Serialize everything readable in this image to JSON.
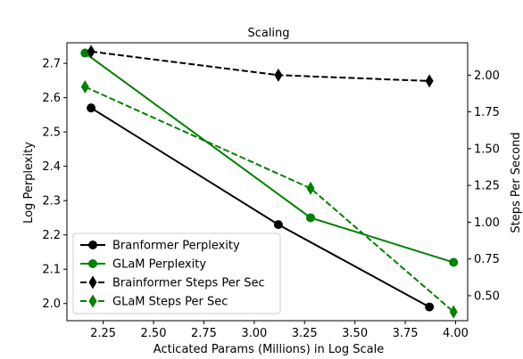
{
  "chart_data": {
    "type": "line",
    "title": "Scaling",
    "xlabel": "Acticated Params (Millions) in Log Scale",
    "ylabel_left": "Log Perplexity",
    "ylabel_right": "Steps Per Second",
    "xlim": [
      2.07,
      4.06
    ],
    "ylim_left": [
      1.95,
      2.76
    ],
    "ylim_right": [
      0.33,
      2.22
    ],
    "x_ticks": [
      2.25,
      2.5,
      2.75,
      3.0,
      3.25,
      3.5,
      3.75,
      4.0
    ],
    "x_tick_labels": [
      "2.25",
      "2.50",
      "2.75",
      "3.00",
      "3.25",
      "3.50",
      "3.75",
      "4.00"
    ],
    "y_left_ticks": [
      2.0,
      2.1,
      2.2,
      2.3,
      2.4,
      2.5,
      2.6,
      2.7
    ],
    "y_left_tick_labels": [
      "2.0",
      "2.1",
      "2.2",
      "2.3",
      "2.4",
      "2.5",
      "2.6",
      "2.7"
    ],
    "y_right_ticks": [
      0.5,
      0.75,
      1.0,
      1.25,
      1.5,
      1.75,
      2.0
    ],
    "y_right_tick_labels": [
      "0.50",
      "0.75",
      "1.00",
      "1.25",
      "1.50",
      "1.75",
      "2.00"
    ],
    "grid": false,
    "legend_position": "lower-left",
    "series": [
      {
        "name": "Branformer Perplexity",
        "axis": "left",
        "color": "#000000",
        "linestyle": "solid",
        "marker": "circle",
        "x": [
          2.19,
          3.12,
          3.87
        ],
        "y": [
          2.57,
          2.23,
          1.99
        ]
      },
      {
        "name": "GLaM Perplexity",
        "axis": "left",
        "color": "#008000",
        "linestyle": "solid",
        "marker": "circle",
        "x": [
          2.16,
          3.28,
          3.99
        ],
        "y": [
          2.73,
          2.25,
          2.12
        ]
      },
      {
        "name": "Brainformer Steps Per Sec",
        "axis": "right",
        "color": "#000000",
        "linestyle": "dashed",
        "marker": "diamond",
        "x": [
          2.19,
          3.12,
          3.87
        ],
        "y": [
          2.16,
          2.0,
          1.96
        ]
      },
      {
        "name": "GLaM Steps Per Sec",
        "axis": "right",
        "color": "#008000",
        "linestyle": "dashed",
        "marker": "diamond",
        "x": [
          2.16,
          3.28,
          3.99
        ],
        "y": [
          1.92,
          1.23,
          0.39
        ]
      }
    ]
  }
}
